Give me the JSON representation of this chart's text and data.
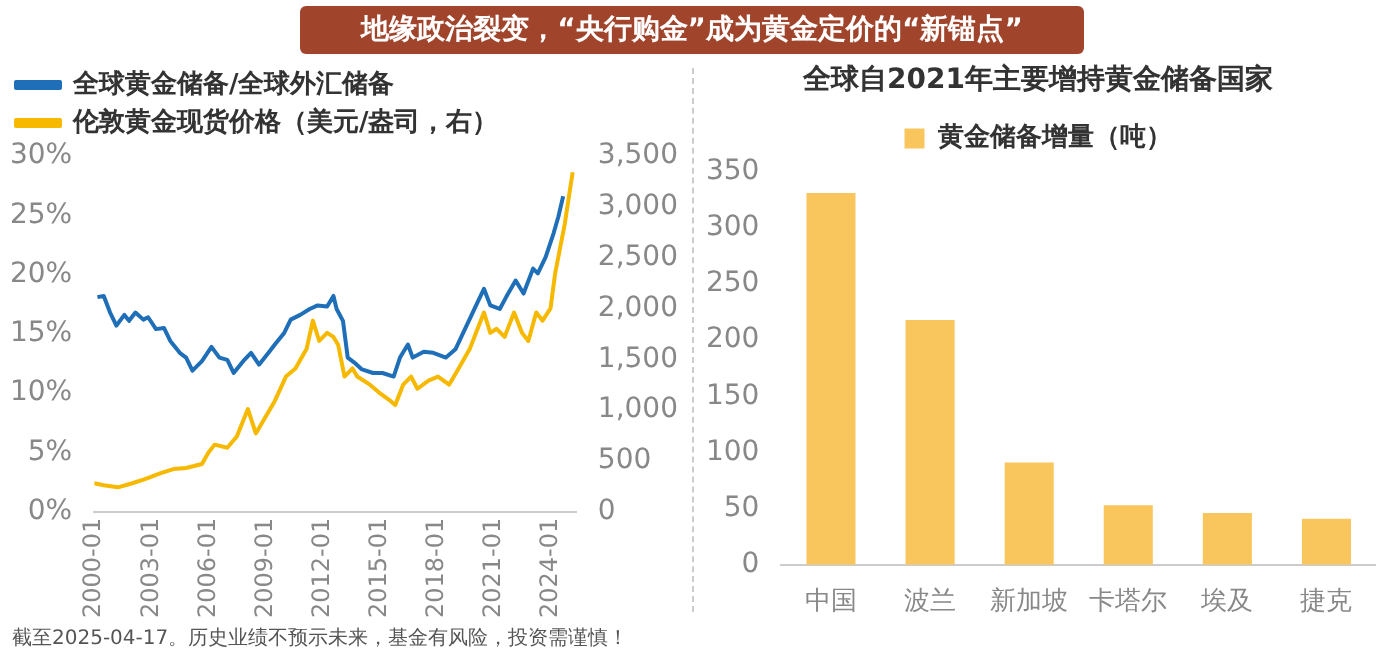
{
  "chart_data": [
    {
      "type": "line",
      "title": "地缘政治裂变，“央行购金”成为黄金定价的“新锚点”",
      "legend": "top left",
      "grid": false,
      "marker": "none",
      "line_style": "solid",
      "xlim": [
        "2000-01",
        "2025-05"
      ],
      "xticks": [
        "2000-01",
        "2003-01",
        "2006-01",
        "2009-01",
        "2012-01",
        "2015-01",
        "2018-01",
        "2021-01",
        "2024-01"
      ],
      "ylim": [
        0,
        30
      ],
      "yticks": [
        {
          "value": 0,
          "label": "0%"
        },
        {
          "value": 5,
          "label": "5%"
        },
        {
          "value": 10,
          "label": "10%"
        },
        {
          "value": 15,
          "label": "15%"
        },
        {
          "value": 20,
          "label": "20%"
        },
        {
          "value": 25,
          "label": "25%"
        },
        {
          "value": 30,
          "label": "30%"
        }
      ],
      "y2lim": [
        0,
        3500
      ],
      "y2ticks": [
        0,
        500,
        {
          "value": 1000,
          "label": "1,000"
        },
        {
          "value": 1500,
          "label": "1,500"
        },
        {
          "value": 2000,
          "label": "2,000"
        },
        {
          "value": 2500,
          "label": "2,500"
        },
        {
          "value": 3000,
          "label": "3,000"
        },
        {
          "value": 3500,
          "label": "3,500"
        }
      ],
      "annotations": [
        "截至2025-04-17。历史业绩不预示未来，基金有风险，投资需谨慎！"
      ],
      "series": [
        {
          "name": "全球黄金储备/全球外汇储备",
          "color": "#1f6fb8",
          "x": [
            "2000-03",
            "2000-07",
            "2000-11",
            "2001-03",
            "2001-08",
            "2001-11",
            "2002-03",
            "2002-08",
            "2002-11",
            "2003-04",
            "2003-09",
            "2004-01",
            "2004-07",
            "2004-11",
            "2005-03",
            "2005-09",
            "2006-03",
            "2006-08",
            "2007-01",
            "2007-05",
            "2007-11",
            "2008-04",
            "2008-09",
            "2009-03",
            "2009-07",
            "2010-01",
            "2010-05",
            "2010-11",
            "2011-05",
            "2011-10",
            "2012-04",
            "2012-08",
            "2012-10",
            "2013-02",
            "2013-05",
            "2013-09",
            "2014-02",
            "2014-09",
            "2015-03",
            "2015-10",
            "2016-02",
            "2016-07",
            "2016-10",
            "2017-05",
            "2017-11",
            "2018-07",
            "2019-01",
            "2019-07",
            "2020-01",
            "2020-07",
            "2020-11",
            "2021-05",
            "2021-09",
            "2022-03",
            "2022-08",
            "2023-02",
            "2023-05",
            "2023-10",
            "2024-03",
            "2024-06",
            "2024-09"
          ],
          "values": [
            18.1,
            18.2,
            16.8,
            15.7,
            16.6,
            16.1,
            16.8,
            16.2,
            16.4,
            15.4,
            15.5,
            14.4,
            13.4,
            13.0,
            11.9,
            12.7,
            13.9,
            13.0,
            12.8,
            11.7,
            12.7,
            13.4,
            12.4,
            13.4,
            14.1,
            15.1,
            16.2,
            16.6,
            17.1,
            17.4,
            17.3,
            18.2,
            17.1,
            16.1,
            13.0,
            12.6,
            12.0,
            11.7,
            11.7,
            11.4,
            13.0,
            14.1,
            13.0,
            13.5,
            13.4,
            13.0,
            13.7,
            15.4,
            17.1,
            18.8,
            17.4,
            17.1,
            18.1,
            19.5,
            18.4,
            20.5,
            20.1,
            21.5,
            23.5,
            24.9,
            26.6
          ]
        },
        {
          "name": "伦敦黄金现货价格（美元/盎司，右）",
          "color": "#f6b900",
          "axis": "y2",
          "x": [
            "2000-01",
            "2000-07",
            "2001-04",
            "2002-01",
            "2002-09",
            "2003-07",
            "2004-03",
            "2004-11",
            "2005-09",
            "2006-01",
            "2006-05",
            "2007-01",
            "2007-07",
            "2008-02",
            "2008-07",
            "2009-01",
            "2009-07",
            "2010-02",
            "2010-08",
            "2011-03",
            "2011-07",
            "2011-11",
            "2012-04",
            "2012-08",
            "2012-11",
            "2013-03",
            "2013-08",
            "2013-11",
            "2014-07",
            "2015-01",
            "2015-08",
            "2015-11",
            "2016-04",
            "2016-09",
            "2017-01",
            "2017-08",
            "2018-02",
            "2018-09",
            "2019-03",
            "2019-10",
            "2020-02",
            "2020-07",
            "2020-11",
            "2021-03",
            "2021-08",
            "2022-02",
            "2022-07",
            "2022-11",
            "2023-04",
            "2023-08",
            "2024-01",
            "2024-04",
            "2024-07",
            "2024-10",
            "2025-01",
            "2025-03"
          ],
          "values": [
            280,
            260,
            240,
            280,
            320,
            380,
            420,
            430,
            470,
            580,
            660,
            630,
            740,
            1010,
            770,
            930,
            1090,
            1330,
            1410,
            1600,
            1880,
            1680,
            1760,
            1720,
            1640,
            1330,
            1410,
            1330,
            1250,
            1170,
            1090,
            1050,
            1250,
            1330,
            1210,
            1290,
            1330,
            1250,
            1410,
            1600,
            1760,
            1960,
            1760,
            1800,
            1720,
            1960,
            1760,
            1680,
            1960,
            1880,
            2000,
            2350,
            2590,
            2830,
            3140,
            3340
          ]
        }
      ]
    },
    {
      "type": "bar",
      "title": "全球自2021年主要增持黄金储备国家",
      "legend": "top",
      "grid": false,
      "categories": [
        "中国",
        "波兰",
        "新加坡",
        "卡塔尔",
        "埃及",
        "捷克"
      ],
      "series": [
        {
          "name": "黄金储备增量（吨）",
          "color": "#f9c65d",
          "values": [
            331,
            218,
            91,
            53,
            46,
            41
          ]
        }
      ],
      "ylim": [
        0,
        350
      ],
      "yticks": [
        0,
        50,
        100,
        150,
        200,
        250,
        300,
        350
      ]
    }
  ]
}
